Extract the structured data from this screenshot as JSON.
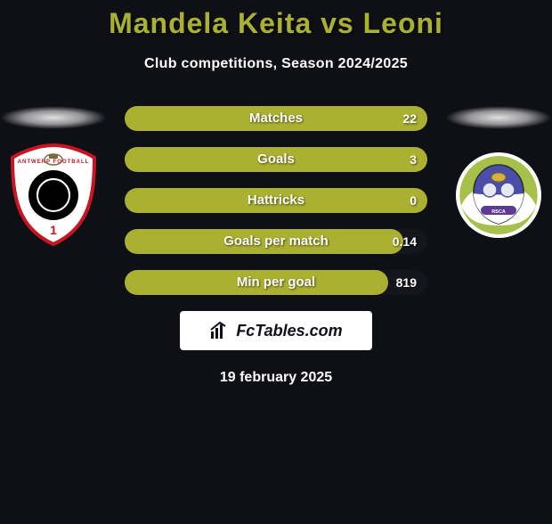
{
  "title": "Mandela Keita vs Leoni",
  "title_color": "#aab030",
  "subtitle": "Club competitions, Season 2024/2025",
  "background_color": "#0f1016",
  "bar_fill_color": "#aab030",
  "bar_track_color": "#15161d",
  "text_color": "#ffffff",
  "bars": [
    {
      "label": "Matches",
      "value": "22",
      "fill_pct": 100
    },
    {
      "label": "Goals",
      "value": "3",
      "fill_pct": 100
    },
    {
      "label": "Hattricks",
      "value": "0",
      "fill_pct": 100
    },
    {
      "label": "Goals per match",
      "value": "0.14",
      "fill_pct": 92
    },
    {
      "label": "Min per goal",
      "value": "819",
      "fill_pct": 87
    }
  ],
  "branding": "FcTables.com",
  "date": "19 february 2025",
  "logo_left": {
    "outer_bg": "#ffffff",
    "accent": "#c81423",
    "inner_bg": "#000000",
    "number": "1"
  },
  "logo_right": {
    "field_top": "#4a4ea8",
    "field_bottom": "#ffffff",
    "wreath": "#a6c04a",
    "ribbon": "#5a3a96"
  }
}
